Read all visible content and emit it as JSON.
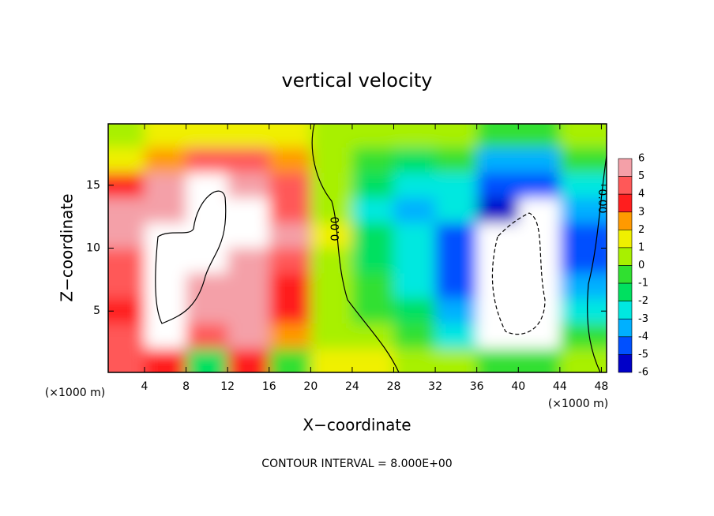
{
  "chart_data": {
    "type": "contour",
    "title": "vertical velocity",
    "x_label": "X−coordinate",
    "y_label": "Z−coordinate",
    "x_unit": "(×1000 m)",
    "footer": "CONTOUR INTERVAL = 8.000E+00",
    "contour_labels": [
      "0.00",
      "0.00"
    ],
    "xlim": [
      0.5,
      48.5
    ],
    "xticks": [
      4,
      8,
      12,
      16,
      20,
      24,
      28,
      32,
      36,
      40,
      44,
      48
    ],
    "ylim": [
      0.125,
      19.875
    ],
    "yticks": [
      5,
      10,
      15
    ],
    "x": [
      2,
      6,
      10,
      14,
      18,
      22,
      26,
      30,
      34,
      38,
      42,
      46
    ],
    "z": [
      19,
      17,
      15,
      13,
      11,
      9,
      7,
      5,
      3,
      1
    ],
    "values": [
      [
        0,
        1,
        1,
        1,
        1,
        0,
        0,
        0,
        0,
        -1,
        -1,
        0
      ],
      [
        1,
        2,
        4,
        4,
        2,
        0,
        -1,
        -2,
        -1,
        -4,
        -4,
        -1
      ],
      [
        3,
        5,
        7,
        6,
        4,
        0,
        -2,
        -3,
        -3,
        -5,
        -5,
        -3
      ],
      [
        5,
        5,
        8,
        7,
        4,
        0,
        -3,
        -4,
        -3,
        -6,
        -7,
        -4
      ],
      [
        5,
        7,
        9,
        7,
        5,
        1,
        -2,
        -3,
        -5,
        -8,
        -8,
        -5
      ],
      [
        4,
        8,
        8,
        6,
        4,
        0,
        -2,
        -3,
        -5,
        -8,
        -8,
        -5
      ],
      [
        4,
        7,
        6,
        5,
        3,
        0,
        -1,
        -3,
        -5,
        -7,
        -8,
        -4
      ],
      [
        3,
        7,
        5,
        5,
        3,
        0,
        -1,
        -2,
        -4,
        -7,
        -8,
        -3
      ],
      [
        4,
        7,
        4,
        5,
        2,
        0,
        0,
        -1,
        -3,
        -7,
        -7,
        -1
      ],
      [
        4,
        3,
        -2,
        3,
        -1,
        1,
        1,
        0,
        0,
        -1,
        -1,
        0
      ]
    ],
    "colorbar_levels": [
      6,
      5,
      4,
      3,
      2,
      1,
      0,
      -1,
      -2,
      -3,
      -4,
      -5,
      -6
    ],
    "colorbar_colors": [
      "#f4a0a8",
      "#ff5858",
      "#ff1e1e",
      "#ff9a00",
      "#f0f000",
      "#a8f000",
      "#30e030",
      "#00e060",
      "#00e8e0",
      "#00b0ff",
      "#0050ff",
      "#0000c8"
    ]
  }
}
